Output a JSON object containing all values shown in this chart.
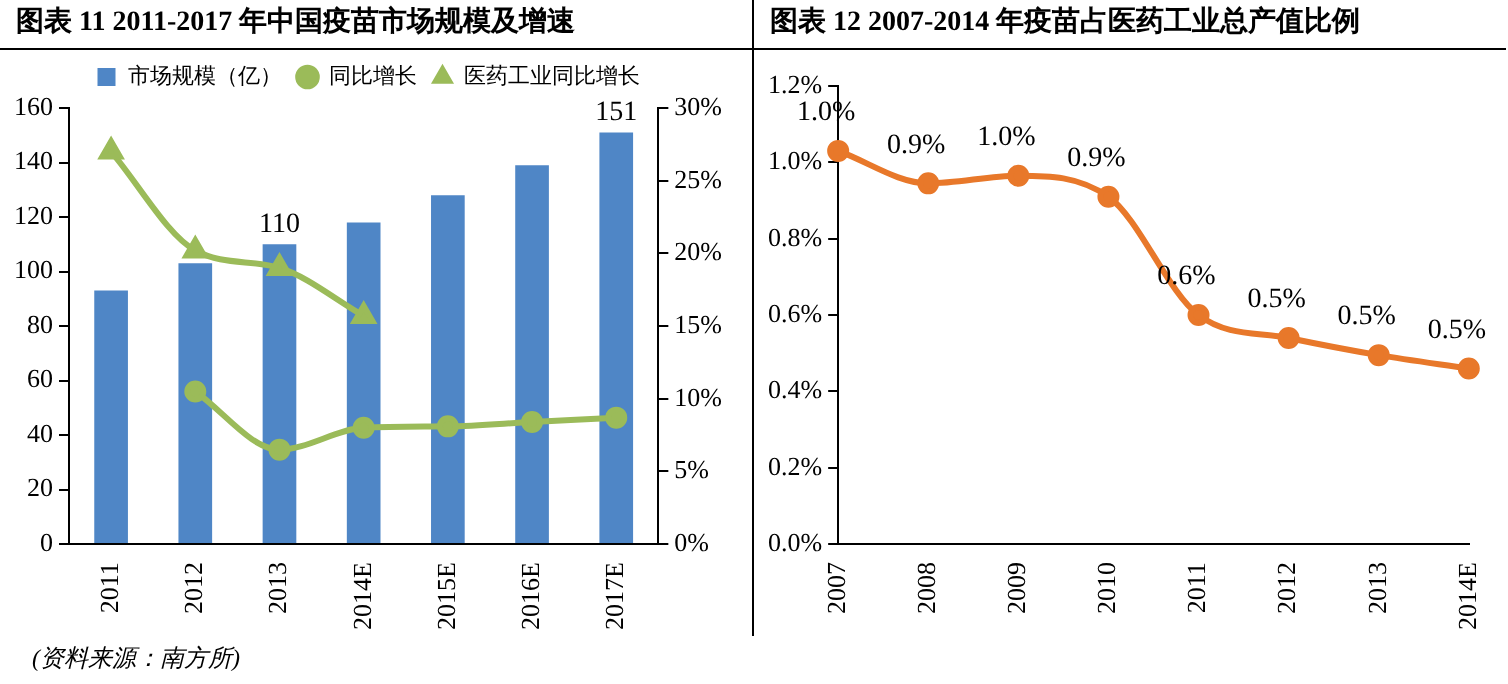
{
  "chart_data": [
    {
      "type": "bar",
      "title": "图表 11 2011-2017 年中国疫苗市场规模及增速",
      "categories": [
        "2011",
        "2012",
        "2013",
        "2014E",
        "2015E",
        "2016E",
        "2017E"
      ],
      "series": [
        {
          "name": "市场规模（亿）",
          "type": "bar",
          "color": "#4f86c6",
          "values": [
            93,
            103,
            110,
            118,
            128,
            139,
            151
          ],
          "value_labels": [
            null,
            null,
            "110",
            null,
            null,
            null,
            "151"
          ]
        },
        {
          "name": "同比增长",
          "type": "line",
          "axis": "y2",
          "color": "#9bbb59",
          "marker": "circle",
          "values": [
            null,
            10.5,
            6.5,
            8.0,
            8.1,
            8.4,
            8.7
          ]
        },
        {
          "name": "医药工业同比增长",
          "type": "line",
          "axis": "y2",
          "color": "#9bbb59",
          "marker": "triangle",
          "values": [
            27,
            20.2,
            19,
            15.7,
            null,
            null,
            null
          ]
        }
      ],
      "ylim": [
        0,
        160
      ],
      "yticks": [
        0,
        20,
        40,
        60,
        80,
        100,
        120,
        140,
        160
      ],
      "y2lim": [
        0,
        30
      ],
      "y2ticks": [
        {
          "value": 0,
          "label": "0%"
        },
        {
          "value": 5,
          "label": "5%"
        },
        {
          "value": 10,
          "label": "10%"
        },
        {
          "value": 15,
          "label": "15%"
        },
        {
          "value": 20,
          "label": "20%"
        },
        {
          "value": 25,
          "label": "25%"
        },
        {
          "value": 30,
          "label": "30%"
        }
      ],
      "legend": "top",
      "annotations": [
        "(资料来源：南方所)"
      ]
    },
    {
      "type": "line",
      "title": "图表 12 2007-2014 年疫苗占医药工业总产值比例",
      "categories": [
        "2007",
        "2008",
        "2009",
        "2010",
        "2011",
        "2012",
        "2013",
        "2014E"
      ],
      "series": [
        {
          "color": "#e8782a",
          "marker": "circle",
          "values": [
            1.03,
            0.945,
            0.965,
            0.91,
            0.6,
            0.54,
            0.495,
            0.46
          ],
          "value_labels": [
            "1.0%",
            "0.9%",
            "1.0%",
            "0.9%",
            "0.6%",
            "0.5%",
            "0.5%",
            "0.5%"
          ]
        }
      ],
      "ylim": [
        0,
        1.2
      ],
      "yticks": [
        {
          "value": 0,
          "label": "0.0%"
        },
        {
          "value": 0.2,
          "label": "0.2%"
        },
        {
          "value": 0.4,
          "label": "0.4%"
        },
        {
          "value": 0.6,
          "label": "0.6%"
        },
        {
          "value": 0.8,
          "label": "0.8%"
        },
        {
          "value": 1.0,
          "label": "1.0%"
        },
        {
          "value": 1.2,
          "label": "1.2%"
        }
      ]
    }
  ]
}
